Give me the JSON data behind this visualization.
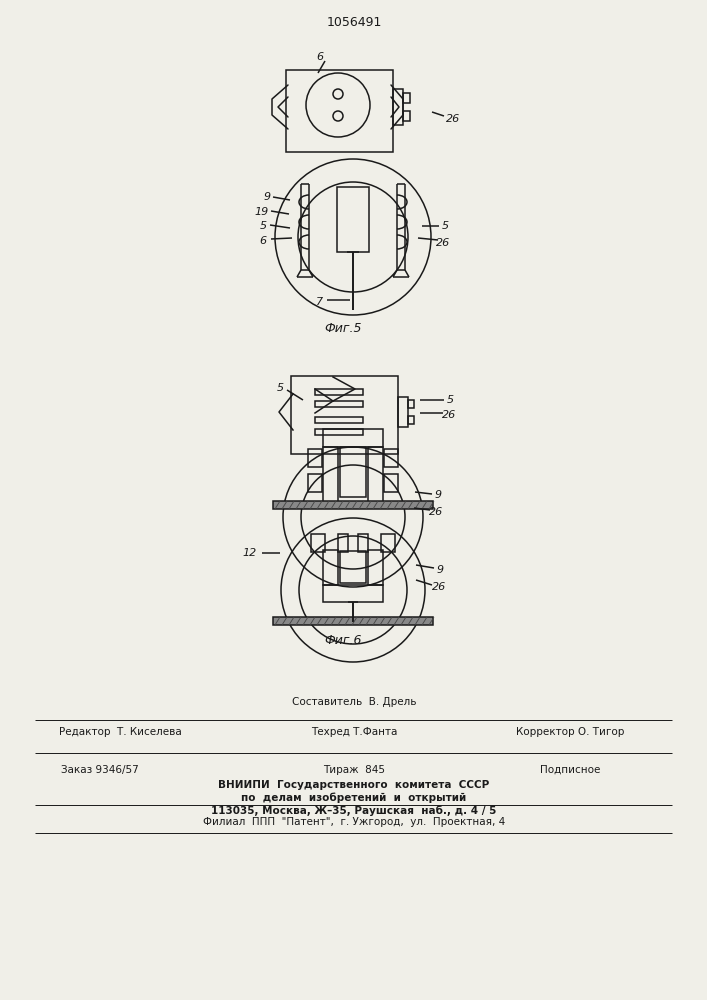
{
  "title": "1056491",
  "fig5_label": "Фиг.5",
  "fig6_label": "Фиг.6",
  "bg_color": "#f0efe8",
  "line_color": "#1a1a1a",
  "footer_row1_center": "Составитель  В. Дрель",
  "footer_row2_left": "Редактор  Т. Киселева",
  "footer_row2_center": "Техред Т.Фанта",
  "footer_row2_right": "Корректор О. Тигор",
  "footer_row3_left": "Заказ 9346/57",
  "footer_row3_center": "Тираж  845",
  "footer_row3_right": "Подписное",
  "footer_vniiipi1": "ВНИИПИ  Государственного  комитета  СССР",
  "footer_vniiipi2": "по  делам  изобретений  и  открытий",
  "footer_vniiipi3": "113035, Москва, Ж–35, Раушская  наб., д. 4 / 5",
  "footer_filial": "Филиал  ППП  \"Патент\",  г. Ужгород,  ул.  Проектная, 4"
}
